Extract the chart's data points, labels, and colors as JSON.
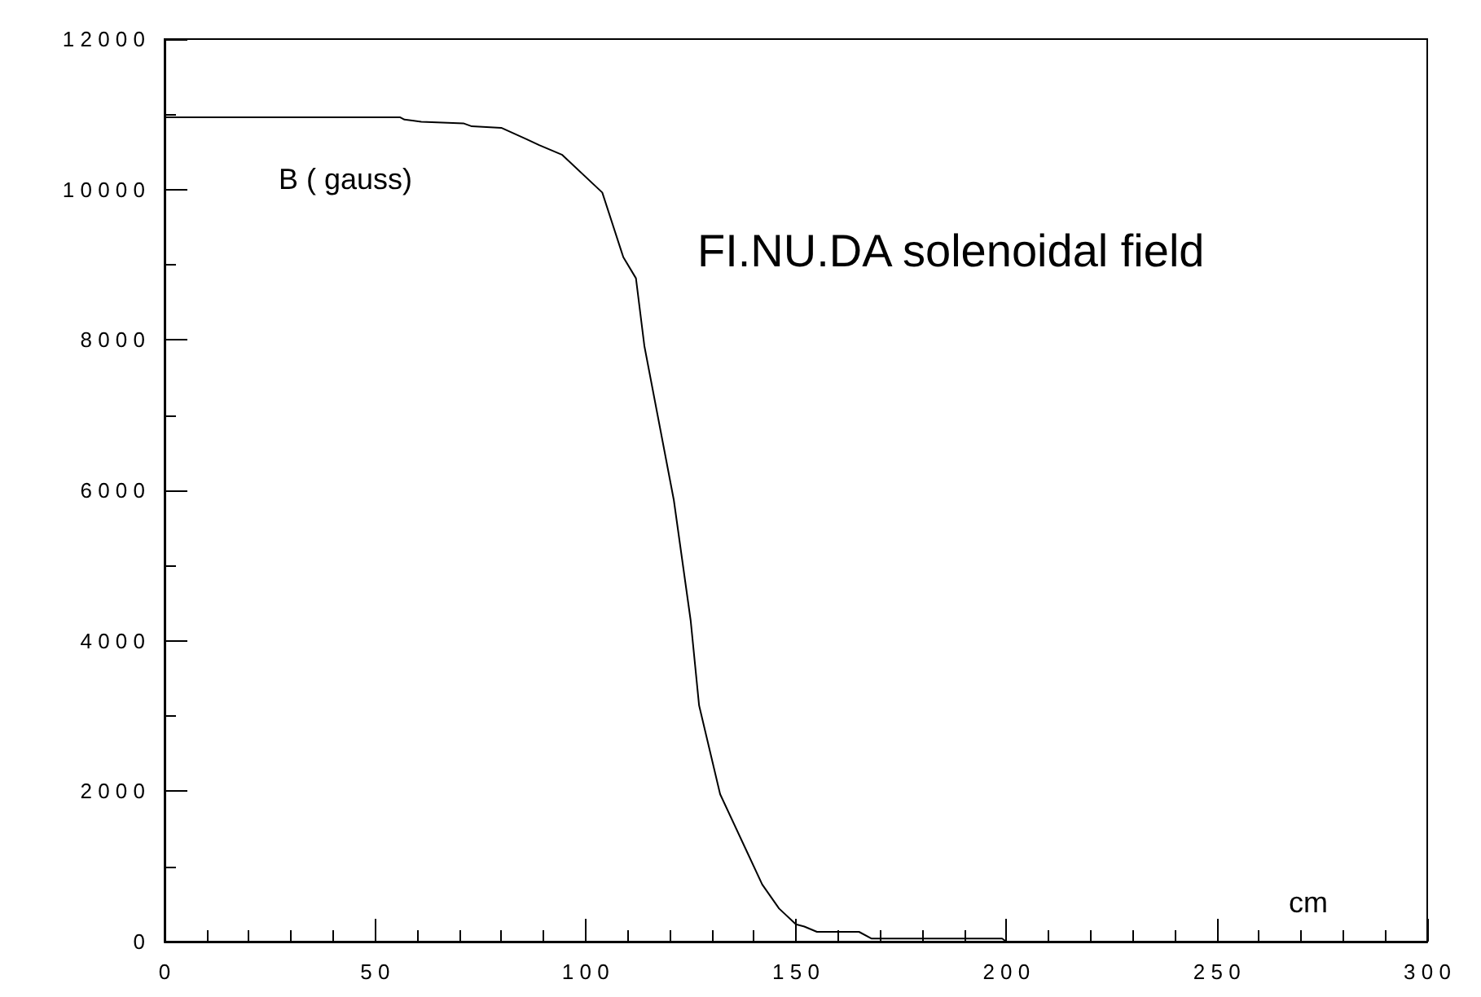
{
  "chart_data": {
    "type": "line",
    "title": "FI.NU.DA solenoidal field",
    "xlabel": "cm",
    "ylabel": "B ( gauss)",
    "x": [
      0,
      56,
      57,
      61,
      71,
      73,
      80,
      86,
      89,
      94.5,
      104,
      109,
      112,
      114,
      121,
      125,
      127,
      132,
      138,
      142,
      146,
      150,
      152,
      155,
      165,
      168,
      199,
      200,
      300
    ],
    "series": [
      {
        "color": "#000000",
        "values": [
          10960,
          10960,
          10930,
          10900,
          10880,
          10840,
          10820,
          10670,
          10590,
          10460,
          9960,
          9100,
          8820,
          7920,
          5870,
          4270,
          3140,
          1960,
          1240,
          760,
          440,
          230,
          200,
          130,
          130,
          40,
          40,
          0,
          0
        ]
      }
    ],
    "xlim": [
      0,
      300
    ],
    "xticks": [
      0,
      50,
      100,
      150,
      200,
      250,
      300
    ],
    "ylim": [
      0,
      12000
    ],
    "yticks": [
      0,
      2000,
      4000,
      6000,
      8000,
      10000,
      12000
    ],
    "grid": false,
    "marker": "none",
    "line_style": "solid"
  }
}
